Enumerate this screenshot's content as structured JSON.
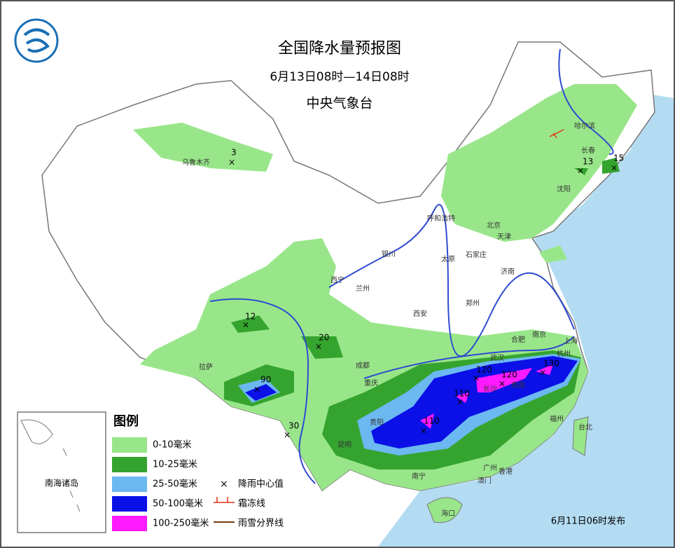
{
  "header": {
    "title": "全国降水量预报图",
    "period": "6月13日08时—14日08时",
    "issuer": "中央气象台"
  },
  "cities": [
    "乌鲁木齐",
    "哈尔滨",
    "长春",
    "沈阳",
    "呼和浩特",
    "北京",
    "天津",
    "银川",
    "太原",
    "石家庄",
    "济南",
    "西宁",
    "兰州",
    "西安",
    "郑州",
    "合肥",
    "南京",
    "上海",
    "杭州",
    "武汉",
    "南昌",
    "长沙",
    "成都",
    "重庆",
    "贵阳",
    "拉萨",
    "昆明",
    "南宁",
    "广州",
    "香港",
    "澳门",
    "海口",
    "福州",
    "台北"
  ],
  "rain_centers": [
    3,
    13,
    15,
    12,
    20,
    90,
    30,
    110,
    110,
    120,
    120,
    130
  ],
  "inset": {
    "label": "南海诸岛"
  },
  "legend": {
    "title": "图例",
    "items": [
      {
        "label": "0-10毫米",
        "color": "#99e68a"
      },
      {
        "label": "10-25毫米",
        "color": "#35a42f"
      },
      {
        "label": "25-50毫米",
        "color": "#6cb8f0"
      },
      {
        "label": "50-100毫米",
        "color": "#0a10e6"
      },
      {
        "label": "100-250毫米",
        "color": "#ff1aff"
      }
    ],
    "symbols": [
      "降雨中心值",
      "霜冻线",
      "雨雪分界线"
    ]
  },
  "footer": {
    "issued": "6月11日06时发布"
  }
}
